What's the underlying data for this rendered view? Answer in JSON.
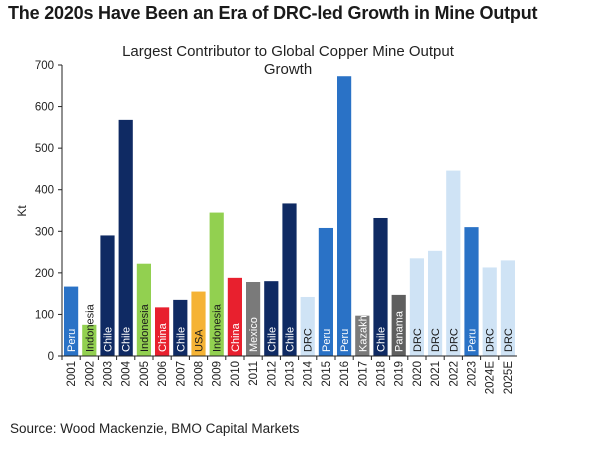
{
  "headline": "The 2020s Have Been an Era of DRC-led Growth in Mine Output",
  "source": "Source: Wood Mackenzie, BMO Capital Markets",
  "colors": {
    "Peru": "#2a72c6",
    "Indonesia": "#92d050",
    "Chile": "#0f2a63",
    "China": "#e8202e",
    "USA": "#f5b335",
    "Mexico": "#7a7a7a",
    "DRC": "#cfe3f5",
    "Kazakhstan": "#7a7a7a",
    "Panama": "#5f5f5f"
  },
  "chart_data": {
    "type": "bar",
    "title_lines": [
      "Largest Contributor to Global Copper Mine Output",
      "Growth"
    ],
    "ylabel": "Kt",
    "xlabel": "",
    "ylim": [
      0,
      700
    ],
    "yticks": [
      0,
      100,
      200,
      300,
      400,
      500,
      600,
      700
    ],
    "grid": false,
    "categories": [
      "2001",
      "2002",
      "2003",
      "2004",
      "2005",
      "2006",
      "2007",
      "2008",
      "2009",
      "2010",
      "2011",
      "2012",
      "2013",
      "2014",
      "2015",
      "2016",
      "2017",
      "2018",
      "2019",
      "2020",
      "2021",
      "2022",
      "2023",
      "2024E",
      "2025E"
    ],
    "values": [
      167,
      75,
      290,
      568,
      222,
      117,
      135,
      155,
      345,
      188,
      178,
      180,
      367,
      142,
      308,
      673,
      97,
      332,
      147,
      235,
      253,
      446,
      310,
      213,
      230
    ],
    "labels": [
      "Peru",
      "Indonesia",
      "Chile",
      "Chile",
      "Indonesia",
      "China",
      "Chile",
      "USA",
      "Indonesia",
      "China",
      "Mexico",
      "Chile",
      "Chile",
      "DRC",
      "Peru",
      "Peru",
      "Kazakhstan",
      "Chile",
      "Panama",
      "DRC",
      "DRC",
      "DRC",
      "Peru",
      "DRC",
      "DRC"
    ]
  }
}
